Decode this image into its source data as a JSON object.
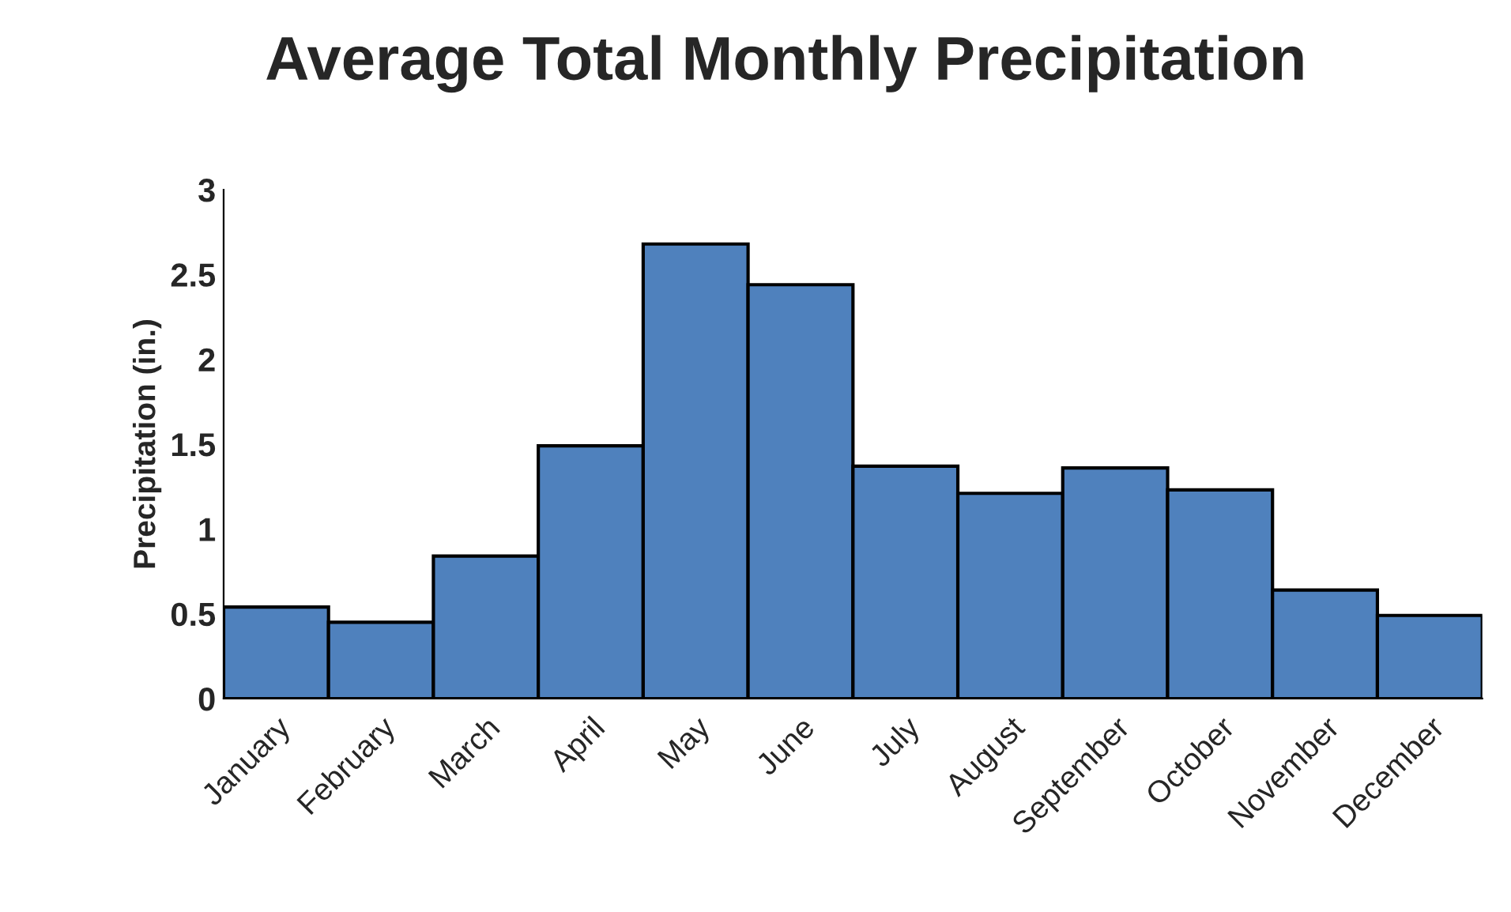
{
  "chart_data": {
    "type": "bar",
    "title": "Average Total Monthly Precipitation",
    "ylabel": "Precipitation (in.)",
    "categories": [
      "January",
      "February",
      "March",
      "April",
      "May",
      "June",
      "July",
      "August",
      "September",
      "October",
      "November",
      "December"
    ],
    "values": [
      0.54,
      0.45,
      0.84,
      1.49,
      2.68,
      2.44,
      1.37,
      1.21,
      1.36,
      1.23,
      0.64,
      0.49
    ],
    "color": "#4f81bd",
    "ylim": [
      0,
      3
    ],
    "yticks": [
      0,
      0.5,
      1,
      1.5,
      2,
      2.5,
      3
    ],
    "grid": false
  }
}
